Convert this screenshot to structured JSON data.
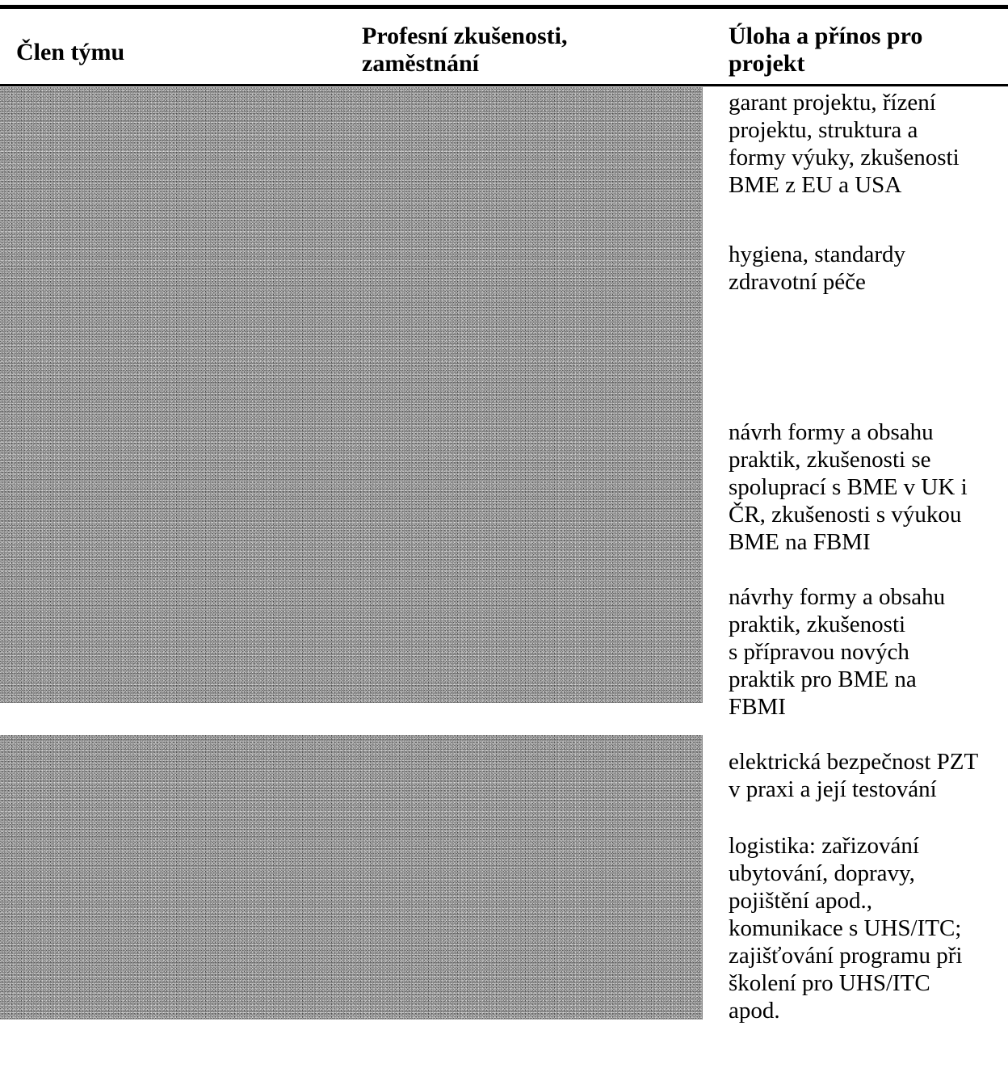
{
  "table": {
    "headers": {
      "member": "Člen týmu",
      "experience": "Profesní zkušenosti,\nzaměstnání",
      "role": "Úloha a přínos pro\nprojekt"
    },
    "roles": [
      "garant projektu, řízení\nprojektu, struktura a\nformy výuky, zkušenosti\nBME z EU a USA",
      "hygiena, standardy\nzdravotní péče",
      "návrh formy a obsahu\npraktik, zkušenosti se\nspoluprací s BME v UK i\nČR, zkušenosti s výukou\nBME na FBMI",
      "návrhy formy a obsahu\npraktik, zkušenosti\ns přípravou nových\npraktik pro BME na\nFBMI",
      "elektrická bezpečnost PZT\nv praxi a její testování",
      "logistika: zařizování\nubytování, dopravy,\npojištění apod.,\nkomunikace s UHS/ITC;\nzajišťování programu při\nškolení pro UHS/ITC\napod."
    ]
  }
}
